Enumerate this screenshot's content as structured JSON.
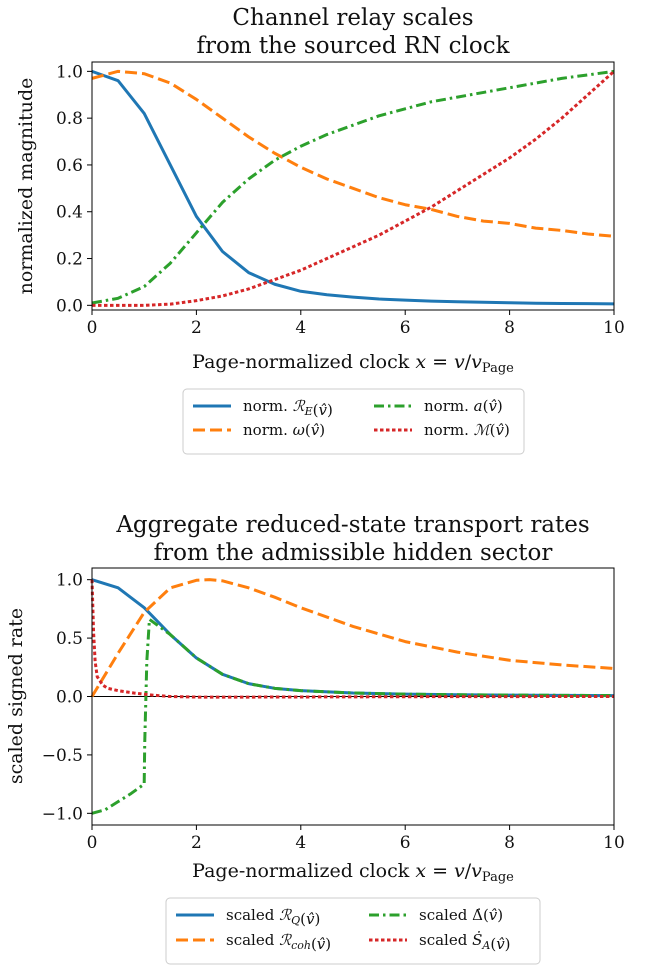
{
  "chart_data": [
    {
      "type": "line",
      "title": [
        "Channel relay scales",
        "from the sourced RN clock"
      ],
      "xlabel": "Page-normalized clock x = v/v_Page",
      "ylabel": "normalized magnitude",
      "xlim": [
        0,
        10
      ],
      "ylim": [
        -0.02,
        1.04
      ],
      "xticks": [
        "0",
        "2",
        "4",
        "6",
        "8",
        "10"
      ],
      "yticks": [
        "0.0",
        "0.2",
        "0.4",
        "0.6",
        "0.8",
        "1.0"
      ],
      "x": [
        0,
        0.5,
        1,
        1.5,
        2,
        2.5,
        3,
        3.5,
        4,
        4.5,
        5,
        5.5,
        6,
        6.5,
        7,
        7.5,
        8,
        8.5,
        9,
        9.5,
        10
      ],
      "series": [
        {
          "name": "norm. R_E(v̂)",
          "color": "#1f77b4",
          "dash": "solid",
          "values": [
            1.0,
            0.96,
            0.82,
            0.6,
            0.38,
            0.23,
            0.14,
            0.09,
            0.06,
            0.045,
            0.035,
            0.027,
            0.022,
            0.018,
            0.015,
            0.013,
            0.011,
            0.009,
            0.008,
            0.007,
            0.006
          ]
        },
        {
          "name": "norm. ω(v̂)",
          "color": "#ff7f0e",
          "dash": "long",
          "values": [
            0.97,
            1.0,
            0.99,
            0.95,
            0.88,
            0.8,
            0.72,
            0.65,
            0.59,
            0.54,
            0.5,
            0.46,
            0.43,
            0.41,
            0.38,
            0.36,
            0.35,
            0.33,
            0.32,
            0.305,
            0.295
          ]
        },
        {
          "name": "norm. a(v̂)",
          "color": "#2ca02c",
          "dash": "dashdot",
          "values": [
            0.01,
            0.03,
            0.08,
            0.18,
            0.31,
            0.44,
            0.54,
            0.62,
            0.68,
            0.73,
            0.77,
            0.81,
            0.84,
            0.87,
            0.89,
            0.91,
            0.93,
            0.95,
            0.97,
            0.985,
            1.0
          ]
        },
        {
          "name": "norm. M(v̂)",
          "color": "#d62728",
          "dash": "dotted",
          "values": [
            0.0,
            0.0,
            0.0,
            0.005,
            0.02,
            0.04,
            0.07,
            0.11,
            0.15,
            0.2,
            0.25,
            0.3,
            0.36,
            0.42,
            0.49,
            0.56,
            0.63,
            0.71,
            0.8,
            0.9,
            1.0
          ]
        }
      ],
      "legend": {
        "placement": "below",
        "columns": 2
      }
    },
    {
      "type": "line",
      "title": [
        "Aggregate reduced-state transport rates",
        "from the admissible hidden sector"
      ],
      "xlabel": "Page-normalized clock x = v/v_Page",
      "ylabel": "scaled signed rate",
      "xlim": [
        0,
        10
      ],
      "ylim": [
        -1.1,
        1.1
      ],
      "xticks": [
        "0",
        "2",
        "4",
        "6",
        "8",
        "10"
      ],
      "yticks": [
        "−1.0",
        "−0.5",
        "0.0",
        "0.5",
        "1.0"
      ],
      "zero_line": true,
      "series": [
        {
          "name": "scaled R_Q(v̂)",
          "color": "#1f77b4",
          "dash": "solid",
          "x": [
            0,
            0.5,
            1,
            1.5,
            2,
            2.5,
            3,
            3.5,
            4,
            5,
            6,
            7,
            8,
            9,
            10
          ],
          "values": [
            1.0,
            0.93,
            0.76,
            0.53,
            0.33,
            0.19,
            0.11,
            0.07,
            0.05,
            0.03,
            0.02,
            0.015,
            0.012,
            0.01,
            0.008
          ]
        },
        {
          "name": "scaled R_coh(v̂)",
          "color": "#ff7f0e",
          "dash": "long",
          "x": [
            0,
            0.5,
            1,
            1.5,
            2,
            2.25,
            2.5,
            3,
            3.5,
            4,
            5,
            6,
            7,
            8,
            9,
            10
          ],
          "values": [
            0.0,
            0.37,
            0.72,
            0.93,
            0.995,
            1.0,
            0.99,
            0.93,
            0.85,
            0.76,
            0.6,
            0.47,
            0.38,
            0.31,
            0.27,
            0.24
          ]
        },
        {
          "name": "scaled Δ̇(v̂)",
          "color": "#2ca02c",
          "dash": "dashdot",
          "x": [
            0,
            0.25,
            0.5,
            0.75,
            1.0,
            1.01,
            1.05,
            1.1,
            1.5,
            2,
            2.5,
            3,
            3.5,
            4,
            5,
            6,
            7,
            8,
            9,
            10
          ],
          "values": [
            -1.0,
            -0.97,
            -0.9,
            -0.83,
            -0.75,
            -0.4,
            0.3,
            0.66,
            0.53,
            0.33,
            0.19,
            0.11,
            0.07,
            0.05,
            0.03,
            0.02,
            0.015,
            0.012,
            0.01,
            0.008
          ]
        },
        {
          "name": "scaled Ṡ_A(v̂)",
          "color": "#d62728",
          "dash": "dotted",
          "x": [
            0,
            0.03,
            0.06,
            0.1,
            0.2,
            0.3,
            0.5,
            0.8,
            1.2,
            1.5,
            2,
            3,
            4,
            5,
            6,
            7,
            8,
            9,
            10
          ],
          "values": [
            1.0,
            0.55,
            0.3,
            0.17,
            0.1,
            0.07,
            0.05,
            0.03,
            0.01,
            0.0,
            -0.005,
            -0.005,
            -0.004,
            -0.003,
            -0.002,
            -0.001,
            -0.001,
            0.0,
            0.0
          ]
        }
      ],
      "legend": {
        "placement": "below",
        "columns": 2
      }
    }
  ]
}
